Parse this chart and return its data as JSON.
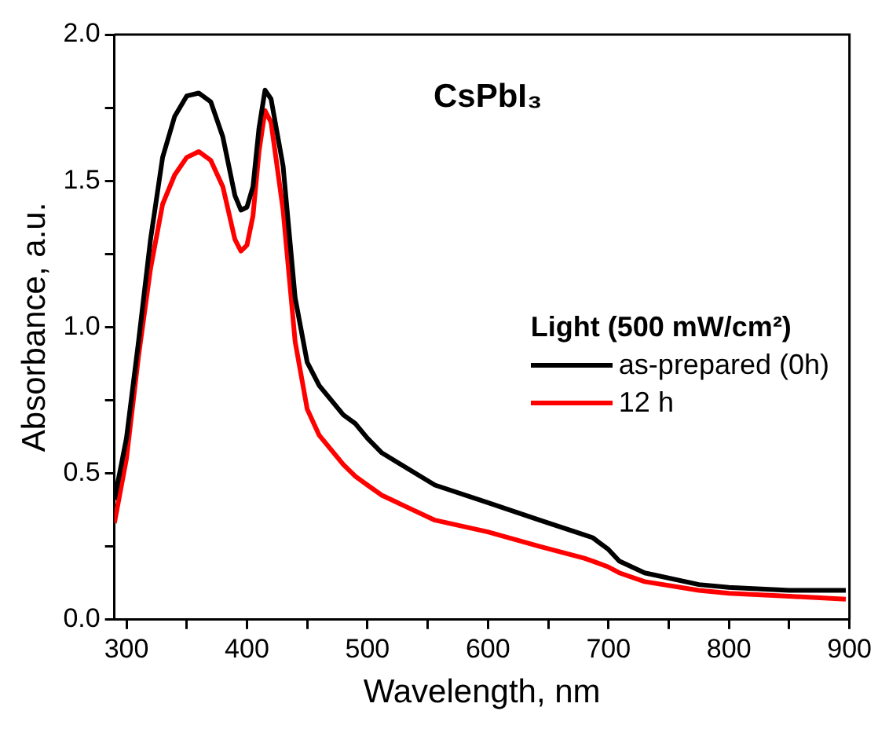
{
  "chart_data": {
    "type": "line",
    "title": "CsPbI₃",
    "xlabel": "Wavelength, nm",
    "ylabel": "Absorbance, a.u.",
    "legend_title": "Light (500 mW/cm²)",
    "xlim": [
      290,
      900
    ],
    "xticks": [
      300,
      {
        "value": 350,
        "label": null
      },
      400,
      {
        "value": 450,
        "label": null
      },
      500,
      {
        "value": 550,
        "label": null
      },
      600,
      {
        "value": 650,
        "label": null
      },
      700,
      {
        "value": 750,
        "label": null
      },
      800,
      {
        "value": 850,
        "label": null
      },
      900
    ],
    "ylim": [
      0,
      2
    ],
    "yticks": [
      {
        "value": 0,
        "label": "0.0"
      },
      {
        "value": 0.25,
        "label": null
      },
      {
        "value": 0.5,
        "label": "0.5"
      },
      {
        "value": 0.75,
        "label": null
      },
      {
        "value": 1,
        "label": "1.0"
      },
      {
        "value": 1.25,
        "label": null
      },
      {
        "value": 1.5,
        "label": "1.5"
      },
      {
        "value": 1.75,
        "label": null
      },
      {
        "value": 2,
        "label": "2.0"
      }
    ],
    "grid": false,
    "legend": "right",
    "marker": "none",
    "line_style": "solid",
    "x": [
      290,
      300,
      310,
      320,
      330,
      340,
      350,
      360,
      370,
      380,
      390,
      395,
      400,
      405,
      410,
      415,
      420,
      430,
      440,
      450,
      460,
      480,
      490,
      500,
      512,
      556,
      600,
      643,
      680,
      687,
      700,
      709,
      730,
      775,
      800,
      850,
      897
    ],
    "series": [
      {
        "name": "as-prepared (0h)",
        "color": "#000000",
        "values": [
          0.41,
          0.62,
          0.95,
          1.3,
          1.58,
          1.72,
          1.79,
          1.8,
          1.77,
          1.65,
          1.45,
          1.4,
          1.41,
          1.48,
          1.68,
          1.81,
          1.78,
          1.55,
          1.1,
          0.88,
          0.8,
          0.7,
          0.67,
          0.62,
          0.57,
          0.46,
          0.4,
          0.34,
          0.29,
          0.28,
          0.24,
          0.2,
          0.16,
          0.12,
          0.11,
          0.1,
          0.1
        ]
      },
      {
        "name": "12 h",
        "color": "#ff0000",
        "values": [
          0.33,
          0.55,
          0.9,
          1.2,
          1.42,
          1.52,
          1.58,
          1.6,
          1.57,
          1.48,
          1.3,
          1.26,
          1.28,
          1.38,
          1.6,
          1.74,
          1.7,
          1.4,
          0.95,
          0.72,
          0.63,
          0.53,
          0.49,
          0.46,
          0.425,
          0.34,
          0.3,
          0.25,
          0.21,
          0.2,
          0.18,
          0.16,
          0.13,
          0.1,
          0.09,
          0.08,
          0.07
        ]
      }
    ]
  }
}
